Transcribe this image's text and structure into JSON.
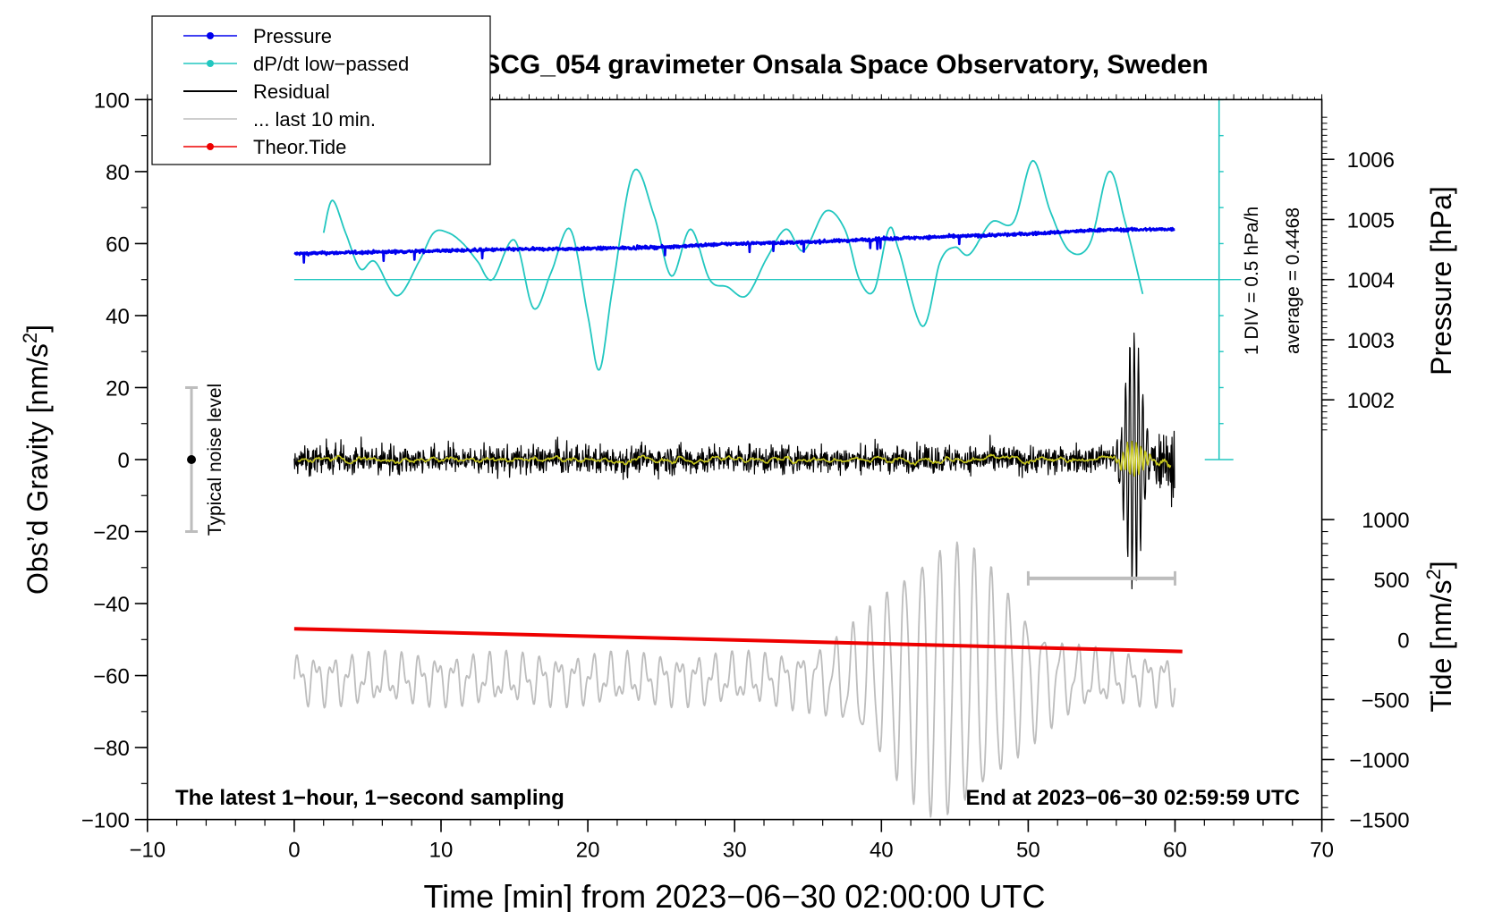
{
  "chart_data": {
    "type": "line",
    "title": "SCG_054 gravimeter Onsala Space Observatory, Sweden",
    "xlabel": "Time [min] from 2023−06−30 02:00:00 UTC",
    "ylabel_main": "Obs’d Gravity [nm/s",
    "ylabel_sup": "2",
    "ylabel_tail": "]",
    "ylabel_right_pressure": "Pressure [hPa]",
    "ylabel_right_tide_main": "Tide [nm/s",
    "ylabel_right_tide_sup": "2",
    "ylabel_right_tide_tail": "]",
    "xlim": [
      -10,
      70
    ],
    "ylim": [
      -100,
      100
    ],
    "x_ticks": [
      {
        "v": -10,
        "label": "−10"
      },
      {
        "v": 0,
        "label": "0"
      },
      {
        "v": 10,
        "label": "10"
      },
      {
        "v": 20,
        "label": "20"
      },
      {
        "v": 30,
        "label": "30"
      },
      {
        "v": 40,
        "label": "40"
      },
      {
        "v": 50,
        "label": "50"
      },
      {
        "v": 60,
        "label": "60"
      },
      {
        "v": 70,
        "label": "70"
      }
    ],
    "y_ticks": [
      {
        "v": 100,
        "label": "100"
      },
      {
        "v": 80,
        "label": "80"
      },
      {
        "v": 60,
        "label": "60"
      },
      {
        "v": 40,
        "label": "40"
      },
      {
        "v": 20,
        "label": "20"
      },
      {
        "v": 0,
        "label": "0"
      },
      {
        "v": -20,
        "label": "−20"
      },
      {
        "v": -40,
        "label": "−40"
      },
      {
        "v": -60,
        "label": "−60"
      },
      {
        "v": -80,
        "label": "−80"
      },
      {
        "v": -100,
        "label": "−100"
      }
    ],
    "pressure_axis": {
      "ticks": [
        {
          "hpa": 1006,
          "label": "1006"
        },
        {
          "hpa": 1005,
          "label": "1005"
        },
        {
          "hpa": 1004,
          "label": "1004"
        },
        {
          "hpa": 1003,
          "label": "1003"
        },
        {
          "hpa": 1002,
          "label": "1002"
        }
      ],
      "ref": {
        "hpa": 1004,
        "y": 50
      },
      "y_per_hpa": 16.7
    },
    "tide_axis": {
      "ticks": [
        {
          "t": 1000,
          "label": "1000"
        },
        {
          "t": 500,
          "label": "500"
        },
        {
          "t": 0,
          "label": "0"
        },
        {
          "t": -500,
          "label": "−500"
        },
        {
          "t": -1000,
          "label": "−1000"
        },
        {
          "t": -1500,
          "label": "−1500"
        }
      ],
      "ref": {
        "t": 0,
        "y": -50
      },
      "y_per_nms2": 0.03333
    },
    "legend": {
      "placement": "top-left",
      "entries": [
        {
          "label": "Pressure",
          "color": "#0000ee",
          "marker": true
        },
        {
          "label": "dP/dt low−passed",
          "color": "#22c7c0",
          "marker": true
        },
        {
          "label": "Residual",
          "color": "#000000",
          "marker": false
        },
        {
          "label": "... last 10 min.",
          "color": "#bdbdbd",
          "marker": false
        },
        {
          "label": "Theor.Tide",
          "color": "#ee0000",
          "marker": true
        }
      ]
    },
    "annotations": {
      "noise_label": "Typical noise level",
      "noise_range": [
        -20,
        20
      ],
      "noise_x": -7,
      "div_label": "1 DIV = 0.5 hPa/h",
      "avg_label": "average = 0.4468",
      "dpdt_scale_x": 63,
      "dpdt_scale_range": [
        0,
        100
      ],
      "dpdt_zero_y": 50,
      "bottom_left": "The latest 1−hour, 1−second sampling",
      "bottom_right": "End at 2023−06−30 02:59:59 UTC",
      "last10_bar": [
        50,
        60
      ],
      "last10_bar_y": -33
    },
    "series": [
      {
        "name": "Pressure",
        "color": "#0000ee",
        "x": [
          0,
          5,
          10,
          15,
          20,
          25,
          30,
          35,
          40,
          45,
          50,
          55,
          60
        ],
        "y": [
          57.2,
          57.6,
          58.0,
          58.4,
          58.6,
          59.0,
          60.0,
          60.4,
          61.3,
          62.0,
          62.7,
          63.8,
          64.0
        ]
      },
      {
        "name": "dP/dt low-passed",
        "color": "#22c7c0",
        "x": [
          2,
          2.6,
          3.5,
          4.5,
          5.5,
          7.0,
          8.5,
          9.5,
          10.5,
          11.5,
          12.5,
          13.5,
          15.0,
          16.3,
          17.5,
          18.8,
          20.0,
          20.8,
          21.7,
          23.1,
          24.5,
          25.7,
          27.0,
          28.3,
          29.5,
          30.8,
          32.2,
          33.5,
          34.7,
          36.2,
          37.5,
          38.5,
          39.5,
          40.5,
          41.2,
          42.8,
          44.0,
          45.0,
          46.0,
          47.5,
          49.0,
          50.3,
          51.5,
          52.8,
          54.2,
          55.5,
          56.6,
          57.8
        ],
        "y": [
          63,
          72,
          63,
          53,
          55,
          45.5,
          55,
          63,
          63,
          60,
          55,
          50,
          61,
          42,
          52,
          64,
          40,
          25,
          48,
          80,
          68,
          51,
          64,
          50,
          48,
          45.5,
          56,
          64,
          58,
          69,
          64,
          50,
          47,
          64,
          58,
          37,
          55,
          59,
          57,
          66,
          66,
          83,
          69,
          58,
          60,
          80,
          66,
          46
        ]
      },
      {
        "name": "Residual",
        "color": "#000000",
        "x_start": 0,
        "x_end": 60,
        "noise_amplitude": 5,
        "burst": {
          "x": [
            54.5,
            58.5
          ],
          "peak_min": 57.2,
          "max": 37,
          "min": -37
        }
      },
      {
        "name": "Residual low-passed",
        "color": "#c8c81e",
        "x_start": 0,
        "x_end": 60
      },
      {
        "name": "... last 10 min.",
        "color": "#bdbdbd",
        "x_start": 0,
        "x_end": 60,
        "base": -61,
        "wave_peak": {
          "x": 44.5,
          "max": -25,
          "min": -99
        }
      },
      {
        "name": "Theor.Tide",
        "color": "#ee0000",
        "x": [
          0,
          60.5
        ],
        "y": [
          -47,
          -53.3
        ]
      }
    ]
  }
}
